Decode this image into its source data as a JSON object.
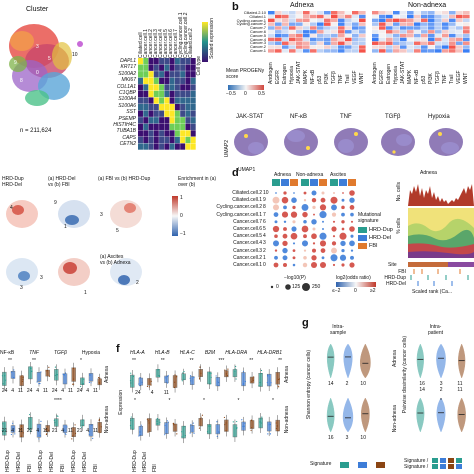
{
  "panel_a": {
    "cluster_label": "Cluster",
    "n_label": "n = 211,624",
    "cluster_numbers": [
      "10",
      "0",
      "8",
      "5",
      "9",
      "3"
    ],
    "genes": [
      "DAPL1",
      "KRT17",
      "S100A2",
      "MKI67",
      "COL1A1",
      "C1QBP",
      "S100A4",
      "S100A6",
      "SST",
      "PSEMP",
      "HISTIH4C",
      "TUBA1B",
      "CAPS",
      "CETN2"
    ],
    "column_headers": [
      "Ciliated.cell",
      "Cancer.cell.1",
      "Cancer.cell.2",
      "Cancer.cell.3",
      "Cancer.cell.4",
      "Cancer.cell.5",
      "Cancer.cell.6",
      "Cancer.cell.7",
      "Cycling.cancer.cell.1",
      "Cycling.cancer.cell.2",
      "Ciliated.cell.2"
    ],
    "cell_type_label": "Cell type",
    "scaled_exp_label": "Scaled expression"
  },
  "panel_b": {
    "letter": "b",
    "adnexa_label": "Adnexa",
    "non_adnexa_label": "Non-adnexa",
    "row_labels": [
      "Ciliated.2.10",
      "Ciliated.1",
      "Cycling.cancer.1",
      "Cycling.cancer.2",
      "Cancer.7",
      "Cancer.6",
      "Cancer.5",
      "Cancer.4",
      "Cancer.3",
      "Cancer.2",
      "Cancer.1"
    ],
    "pathways": [
      "Androgen",
      "EGFR",
      "Estrogen",
      "Hypoxia",
      "JAK-STAT",
      "MAPK",
      "NF-κB",
      "p53",
      "PI3K",
      "TGFβ",
      "TNF",
      "Trail",
      "VEGF",
      "WNT"
    ],
    "colorbar_title": "Mean PROGENy score",
    "colorbar_ticks": [
      "−0.5",
      "0",
      "0.5"
    ],
    "umap_titles": [
      "JAK-STAT",
      "NF-κB",
      "TNF",
      "TGFβ",
      "Hypoxia"
    ],
    "umap_x": "UMAP1",
    "umap_y": "UMAP2"
  },
  "panel_c": {
    "titles": [
      "HRD-Dup\nHRD-Del",
      "(a) HRD-Del\nvs (b) FBI",
      "(a) FBI vs (b) HRD-Dup",
      "(a) Ascites\nvs (b) Adnexa"
    ],
    "colorbar_title": "Enrichment in (a) over (b)",
    "colorbar_ticks": [
      "1",
      "0",
      "−1"
    ],
    "numbers": [
      "4",
      "9",
      "3",
      "1",
      "5",
      "3",
      "3",
      "1",
      "2"
    ]
  },
  "panel_d": {
    "letter": "d",
    "groups": [
      "Adnexa",
      "Non-adnexa",
      "Ascites"
    ],
    "rows": [
      "Ciliated.cell.2",
      "Ciliated.cell.1",
      "Cycling.cancer.cell.2",
      "Cycling.cancer.cell.1",
      "Cancer.cell.7",
      "Cancer.cell.6",
      "Cancer.cell.5",
      "Cancer.cell.4",
      "Cancer.cell.3",
      "Cancer.cell.2",
      "Cancer.cell.1"
    ],
    "row_numbers": [
      "10",
      "9",
      "8",
      "7",
      "6",
      "5",
      "4",
      "3",
      "2",
      "1",
      "0"
    ],
    "legend_title": "Mutational signature",
    "legend": [
      {
        "name": "HRD-Dup",
        "color": "#2a9d8f"
      },
      {
        "name": "HRD-Del",
        "color": "#3d7dd8"
      },
      {
        "name": "FBI",
        "color": "#e07a2e"
      }
    ],
    "size_title": "−log10(P)",
    "size_ticks": [
      "0",
      "125",
      "250"
    ],
    "color_title": "log2(odds ratio)",
    "color_ticks": [
      "≤−2",
      "0",
      "≥2"
    ]
  },
  "panel_e": {
    "adnexa_label": "Adnexa",
    "no_cells_label": "No. cells",
    "pct_cells_label": "% cells",
    "site_label": "Site",
    "signatures": [
      "FBI",
      "HRD-Dup",
      "HRD-Del"
    ],
    "x_label": "Scaled rank (Ca..."
  },
  "panel_left_bottom": {
    "pathways": [
      "NF-κB",
      "TNF",
      "TGFβ",
      "Hypoxia"
    ],
    "site_labels": [
      "Adnexa",
      "Non-adnexa"
    ],
    "sig_top": [
      "**",
      "**",
      "*"
    ],
    "counts_top": [
      "24",
      "4",
      "11",
      "24",
      "4",
      "11",
      "24",
      "4",
      "11",
      "24",
      "4",
      "11"
    ],
    "sig_bottom": [
      "****"
    ],
    "counts_bottom": [
      "21",
      "4",
      "11",
      "21",
      "4",
      "11",
      "21",
      "4",
      "11",
      "21",
      "4",
      "11"
    ],
    "x_ticks": [
      "HRD-Dup",
      "HRD-Del",
      "FBI",
      "HRD-Dup",
      "HRD-Del",
      "FBI",
      "HRD-Dup",
      "HRD-Del",
      "FBI"
    ]
  },
  "panel_f": {
    "letter": "f",
    "genes": [
      "HLA-A",
      "HLA-B",
      "HLA-C",
      "B2M",
      "HLA-DRA",
      "HLA-DRB1"
    ],
    "y_label": "Expression",
    "site_labels": [
      "Adnexa",
      "Non-adnexa"
    ],
    "sig_top": [
      "**",
      "**",
      "**",
      "***",
      "**",
      "**"
    ],
    "counts": [
      "24",
      "4",
      "11"
    ],
    "sig_bottom": [
      "*",
      "*",
      "*",
      "*",
      "*"
    ],
    "x_ticks": [
      "HRD-Dup",
      "HRD-Del",
      "FBI"
    ]
  },
  "panel_g": {
    "letter": "g",
    "intra_sample": "Intra-\nsample",
    "intra_patient": "Intra-\npatient",
    "left_y": "Shannon entropy (cancer cells)",
    "right_y": "Pairwise dissimilarity (cancer cells)",
    "site_labels": [
      "Adnexa",
      "Non-adnexa"
    ],
    "counts_left_top": [
      "14",
      "2",
      "10"
    ],
    "counts_left_bottom": [
      "16",
      "3",
      "10"
    ],
    "counts_right_top": [
      "16",
      "3",
      "11"
    ],
    "counts_right_top2": [
      "14",
      "2",
      "11"
    ],
    "sig_right": [
      "*"
    ],
    "signature_label": "Signature",
    "signature_label2": "Signature /\nSignature /",
    "colors": [
      "#2a9d8f",
      "#3d7dd8",
      "#8b4513"
    ]
  }
}
